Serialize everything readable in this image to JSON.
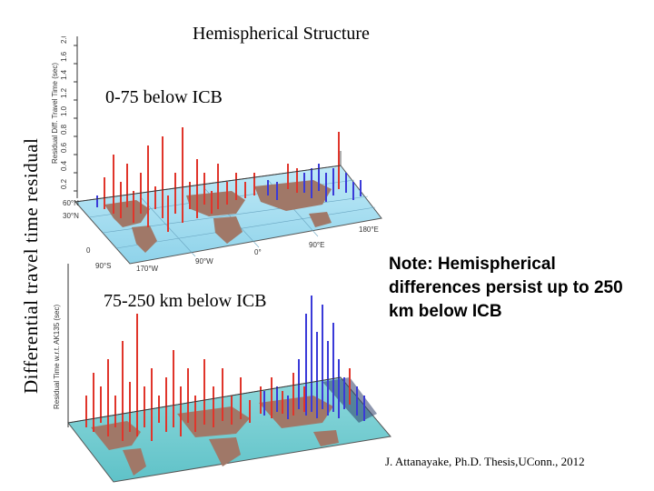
{
  "title": "Hemispherical Structure",
  "y_axis_label": "Differential travel time residual",
  "panels": [
    {
      "label": "0-75 below ICB",
      "axis_label": "Residual Diff. Travel Time (sec)",
      "axis_ticks": [
        "0.2",
        "0.4",
        "0.6",
        "0.8",
        "1.0",
        "1.2",
        "1.4",
        "1.6",
        "2.0"
      ],
      "lon_labels": [
        "170°W",
        "90°W",
        "0°",
        "90°E",
        "180°E"
      ],
      "lat_labels": [
        "0",
        "30°N",
        "60°N",
        "90°S"
      ]
    },
    {
      "label": "75-250 km below ICB",
      "axis_label": "Residual Time w.r.t. AK135 (sec)"
    }
  ],
  "note": "Note: Hemispherical differences persist up to 250 km below ICB",
  "credit": "J. Attanayake, Ph.D. Thesis,UConn., 2012",
  "colors": {
    "ocean_top": "#aee4f4",
    "ocean_bottom": "#7ccfd6",
    "land": "#a07868",
    "west_spike": "#e0352b",
    "east_spike": "#3a3ad8"
  }
}
